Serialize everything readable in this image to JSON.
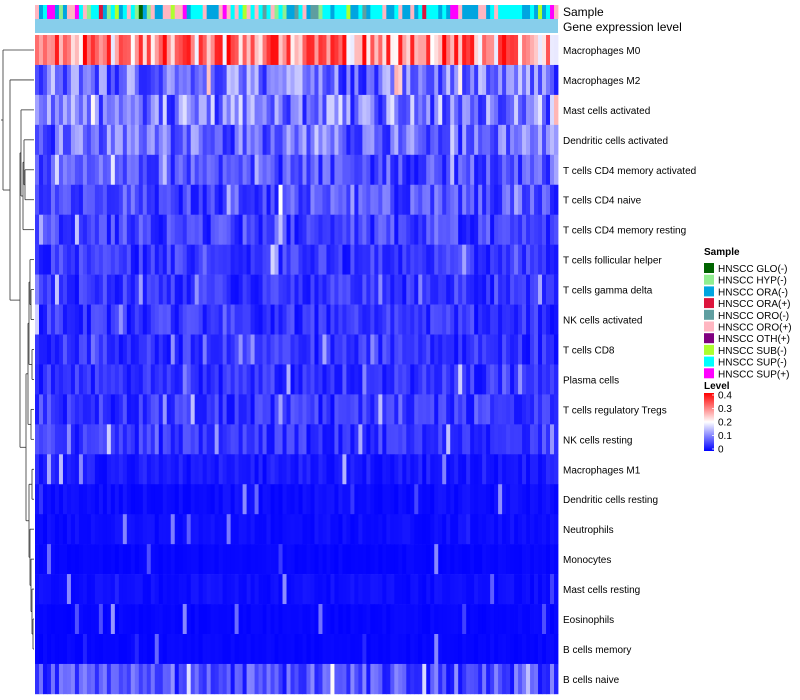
{
  "chart_data": {
    "type": "heatmap",
    "annotation_tracks": [
      "Sample",
      "Gene expression level"
    ],
    "row_labels": [
      "Macrophages M0",
      "Macrophages M2",
      "Mast cells activated",
      "Dendritic cells activated",
      "T cells CD4 memory activated",
      "T cells CD4 naive",
      "T cells CD4 memory resting",
      "T cells follicular helper",
      "T cells gamma delta",
      "NK cells activated",
      "T cells CD8",
      "Plasma cells",
      "T cells regulatory  Tregs",
      "NK cells resting",
      "Macrophages M1",
      "Dendritic cells resting",
      "Neutrophils",
      "Monocytes",
      "Mast cells resting",
      "Eosinophils",
      "B cells memory",
      "B cells naive"
    ],
    "n_samples": 131,
    "row_typical_levels": [
      0.3,
      0.09,
      0.1,
      0.08,
      0.06,
      0.06,
      0.05,
      0.04,
      0.04,
      0.04,
      0.04,
      0.04,
      0.04,
      0.04,
      0.02,
      0.01,
      0.01,
      0.005,
      0.01,
      0.005,
      0.005,
      0.06
    ],
    "level_range": [
      0,
      0.4
    ],
    "sample_legend": {
      "title": "Sample",
      "entries": [
        {
          "label": "HNSCC GLO(-)",
          "color": "#006400"
        },
        {
          "label": "HNSCC HYP(-)",
          "color": "#90EE90"
        },
        {
          "label": "HNSCC ORA(-)",
          "color": "#00A5E0"
        },
        {
          "label": "HNSCC ORA(+)",
          "color": "#DC143C"
        },
        {
          "label": "HNSCC ORO(-)",
          "color": "#5F9EA0"
        },
        {
          "label": "HNSCC ORO(+)",
          "color": "#FFB6C1"
        },
        {
          "label": "HNSCC OTH(+)",
          "color": "#800080"
        },
        {
          "label": "HNSCC SUB(-)",
          "color": "#ADFF2F"
        },
        {
          "label": "HNSCC SUP(-)",
          "color": "#00FFFF"
        },
        {
          "label": "HNSCC SUP(+)",
          "color": "#FF00FF"
        }
      ]
    },
    "level_legend": {
      "title": "Level",
      "ticks": [
        "0.4",
        "0.3",
        "0.2",
        "0.1",
        "0"
      ],
      "colors": [
        "#0000FF",
        "#FFFFFF",
        "#FF0000"
      ]
    },
    "gene_expression_color": "#87CEEB"
  }
}
